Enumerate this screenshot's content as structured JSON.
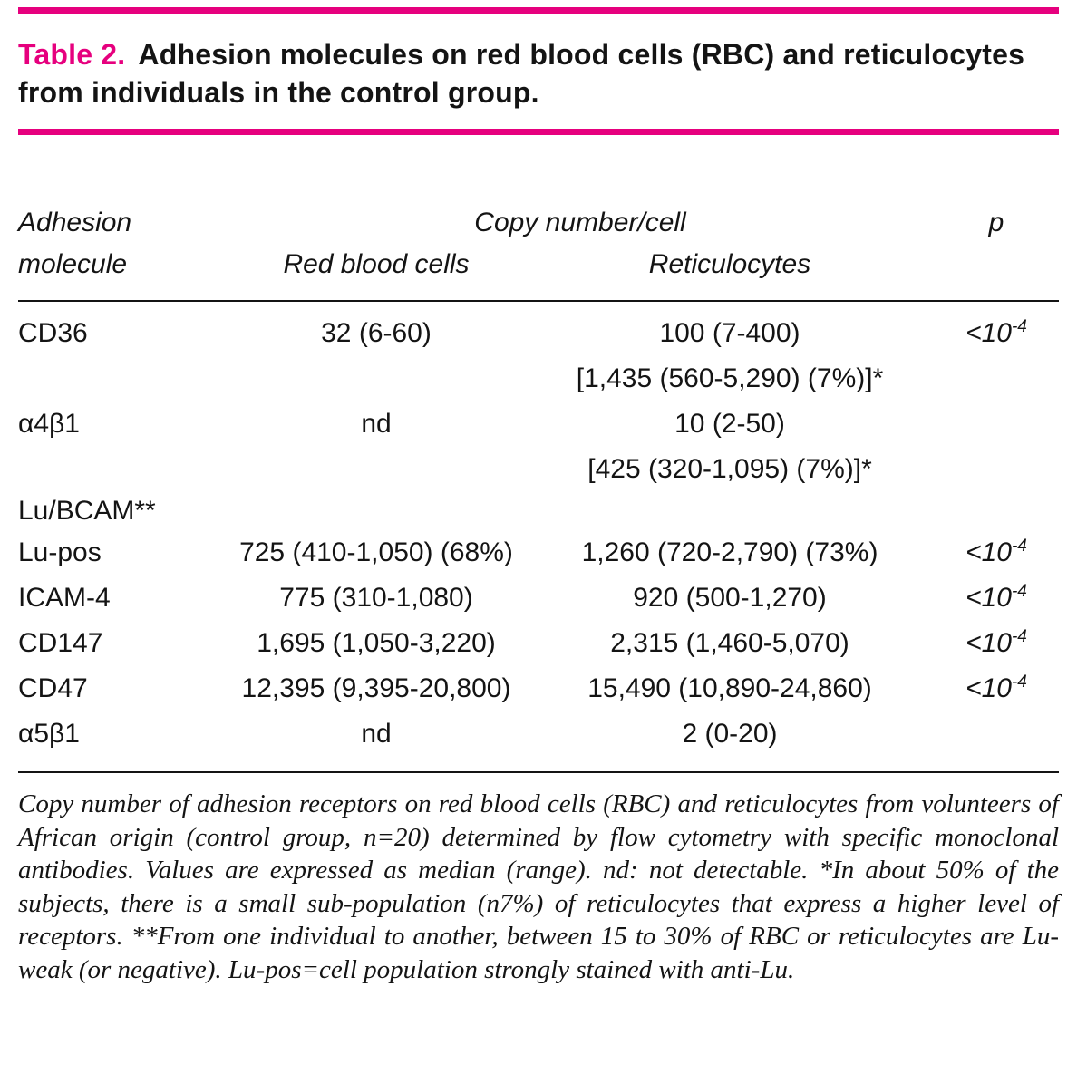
{
  "colors": {
    "accent": "#e6007e",
    "text": "#141414"
  },
  "title": {
    "label": "Table 2.",
    "text": "Adhesion molecules on red blood cells (RBC) and reticu­locytes from individuals in the control group."
  },
  "table": {
    "header": {
      "molecule_line1": "Adhesion",
      "molecule_line2": "molecule",
      "group": "Copy number/cell",
      "rbc": "Red blood cells",
      "retic": "Reticulocytes",
      "p": "p"
    },
    "rows": [
      {
        "molecule": "CD36",
        "rbc": "32 (6-60)",
        "retic": "100 (7-400)",
        "retic_sub": "[1,435 (560-5,290) (7%)]*",
        "p_base": "<10",
        "p_exp": "-4"
      },
      {
        "molecule": "α4β1",
        "rbc": "nd",
        "retic": "10 (2-50)",
        "retic_sub": "[425 (320-1,095) (7%)]*",
        "p_base": "",
        "p_exp": ""
      },
      {
        "molecule": "Lu/BCAM**",
        "rbc": "",
        "retic": "",
        "p_base": "",
        "p_exp": ""
      },
      {
        "molecule": "Lu-pos",
        "rbc": "725 (410-1,050) (68%)",
        "retic": "1,260 (720-2,790) (73%)",
        "p_base": "<10",
        "p_exp": "-4"
      },
      {
        "molecule": "ICAM-4",
        "rbc": "775 (310-1,080)",
        "retic": "920 (500-1,270)",
        "p_base": "<10",
        "p_exp": "-4"
      },
      {
        "molecule": "CD147",
        "rbc": "1,695 (1,050-3,220)",
        "retic": "2,315 (1,460-5,070)",
        "p_base": "<10",
        "p_exp": "-4"
      },
      {
        "molecule": "CD47",
        "rbc": "12,395 (9,395-20,800)",
        "retic": "15,490 (10,890-24,860)",
        "p_base": "<10",
        "p_exp": "-4"
      },
      {
        "molecule": "α5β1",
        "rbc": "nd",
        "retic": "2 (0-20)",
        "p_base": "",
        "p_exp": ""
      }
    ]
  },
  "footnote": {
    "text": "Copy number of adhesion receptors on red blood cells (RBC) and reticulocytes from volunteers of African origin (control group, n=20) determined by flow cytometry with specific monoclonal antibodies. Values are expressed as median (range). nd: not detectable. *In about 50% of the subjects, there is a small sub-population (n7%) of reticulocytes that express a higher level of receptors. **From one individual to another, between 15 to 30% of RBC or reticulocytes are Lu-weak (or negative). Lu-pos=cell population strongly stained with anti-Lu."
  }
}
